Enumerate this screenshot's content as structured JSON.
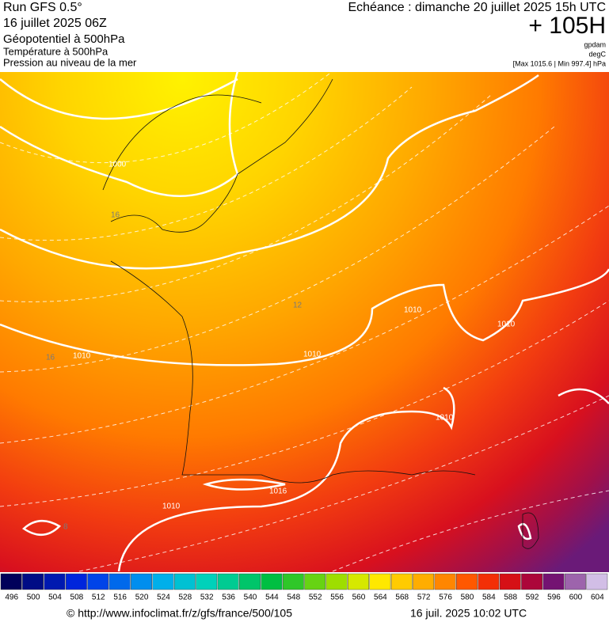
{
  "header": {
    "run": "Run GFS 0.5°",
    "run_date": "16 juillet 2025 06Z",
    "layer1": "Géopotentiel à 500hPa",
    "layer2": "Température à 500hPa",
    "layer3": "Pression au niveau de la mer",
    "valid": "Echéance : dimanche 20 juillet 2025 15h UTC",
    "lead": "+ 105H",
    "unit1": "gpdam",
    "unit2": "degC",
    "pressure_range": "[Max 1015.6 | Min 997.4] hPa"
  },
  "map": {
    "contour_labels": [
      "1000",
      "1010",
      "1010",
      "1010",
      "1010",
      "1010",
      "1010",
      "1016",
      "16",
      "16",
      "12",
      "8"
    ]
  },
  "colorbar": {
    "labels": [
      496,
      500,
      504,
      508,
      512,
      516,
      520,
      524,
      528,
      532,
      536,
      540,
      544,
      548,
      552,
      556,
      560,
      564,
      568,
      572,
      576,
      580,
      584,
      588,
      592,
      596,
      600,
      604
    ]
  },
  "footer": {
    "url": "© http://www.infoclimat.fr/z/gfs/france/500/105",
    "timestamp": "16 juil. 2025 10:02 UTC"
  }
}
